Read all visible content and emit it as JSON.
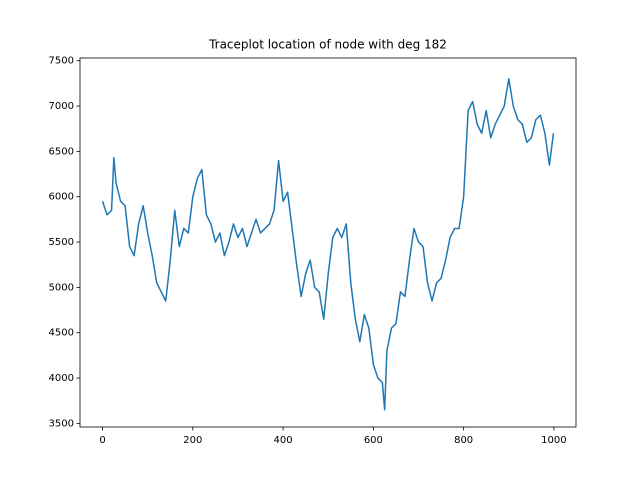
{
  "chart_data": {
    "type": "line",
    "title": "Traceplot location of node with deg 182",
    "x": [
      0,
      10,
      20,
      25,
      30,
      40,
      50,
      60,
      70,
      80,
      90,
      100,
      110,
      120,
      130,
      140,
      150,
      160,
      170,
      180,
      190,
      200,
      210,
      220,
      230,
      240,
      250,
      260,
      270,
      280,
      290,
      300,
      310,
      320,
      330,
      340,
      350,
      360,
      370,
      380,
      390,
      400,
      410,
      420,
      430,
      440,
      450,
      460,
      470,
      480,
      490,
      500,
      510,
      520,
      530,
      540,
      550,
      560,
      570,
      580,
      590,
      600,
      610,
      620,
      625,
      630,
      640,
      650,
      660,
      670,
      680,
      690,
      700,
      710,
      720,
      730,
      740,
      750,
      760,
      770,
      780,
      790,
      800,
      810,
      820,
      830,
      840,
      850,
      860,
      870,
      880,
      890,
      900,
      910,
      920,
      930,
      940,
      950,
      960,
      970,
      980,
      990,
      999
    ],
    "values": [
      5950,
      5800,
      5850,
      6430,
      6150,
      5950,
      5900,
      5450,
      5350,
      5700,
      5900,
      5600,
      5350,
      5050,
      4950,
      4850,
      5300,
      5850,
      5450,
      5650,
      5600,
      6000,
      6200,
      6300,
      5800,
      5700,
      5500,
      5600,
      5350,
      5500,
      5700,
      5550,
      5650,
      5450,
      5600,
      5750,
      5600,
      5650,
      5700,
      5850,
      6400,
      5950,
      6050,
      5650,
      5250,
      4900,
      5150,
      5300,
      5000,
      4950,
      4650,
      5150,
      5550,
      5650,
      5550,
      5700,
      5050,
      4650,
      4400,
      4700,
      4550,
      4150,
      4000,
      3950,
      3650,
      4300,
      4550,
      4600,
      4950,
      4900,
      5300,
      5650,
      5500,
      5450,
      5050,
      4850,
      5050,
      5100,
      5300,
      5550,
      5650,
      5650,
      6000,
      6950,
      7050,
      6800,
      6700,
      6950,
      6650,
      6800,
      6900,
      7000,
      7300,
      7000,
      6850,
      6800,
      6600,
      6650,
      6850,
      6900,
      6700,
      6350,
      6700
    ],
    "color": "#1f77b4",
    "xlim": [
      -49.95,
      1048.95
    ],
    "ylim": [
      3460,
      7530
    ],
    "xticks": [
      0,
      200,
      400,
      600,
      800,
      1000
    ],
    "yticks": [
      3500,
      4000,
      4500,
      5000,
      5500,
      6000,
      6500,
      7000,
      7500
    ],
    "grid": false
  }
}
